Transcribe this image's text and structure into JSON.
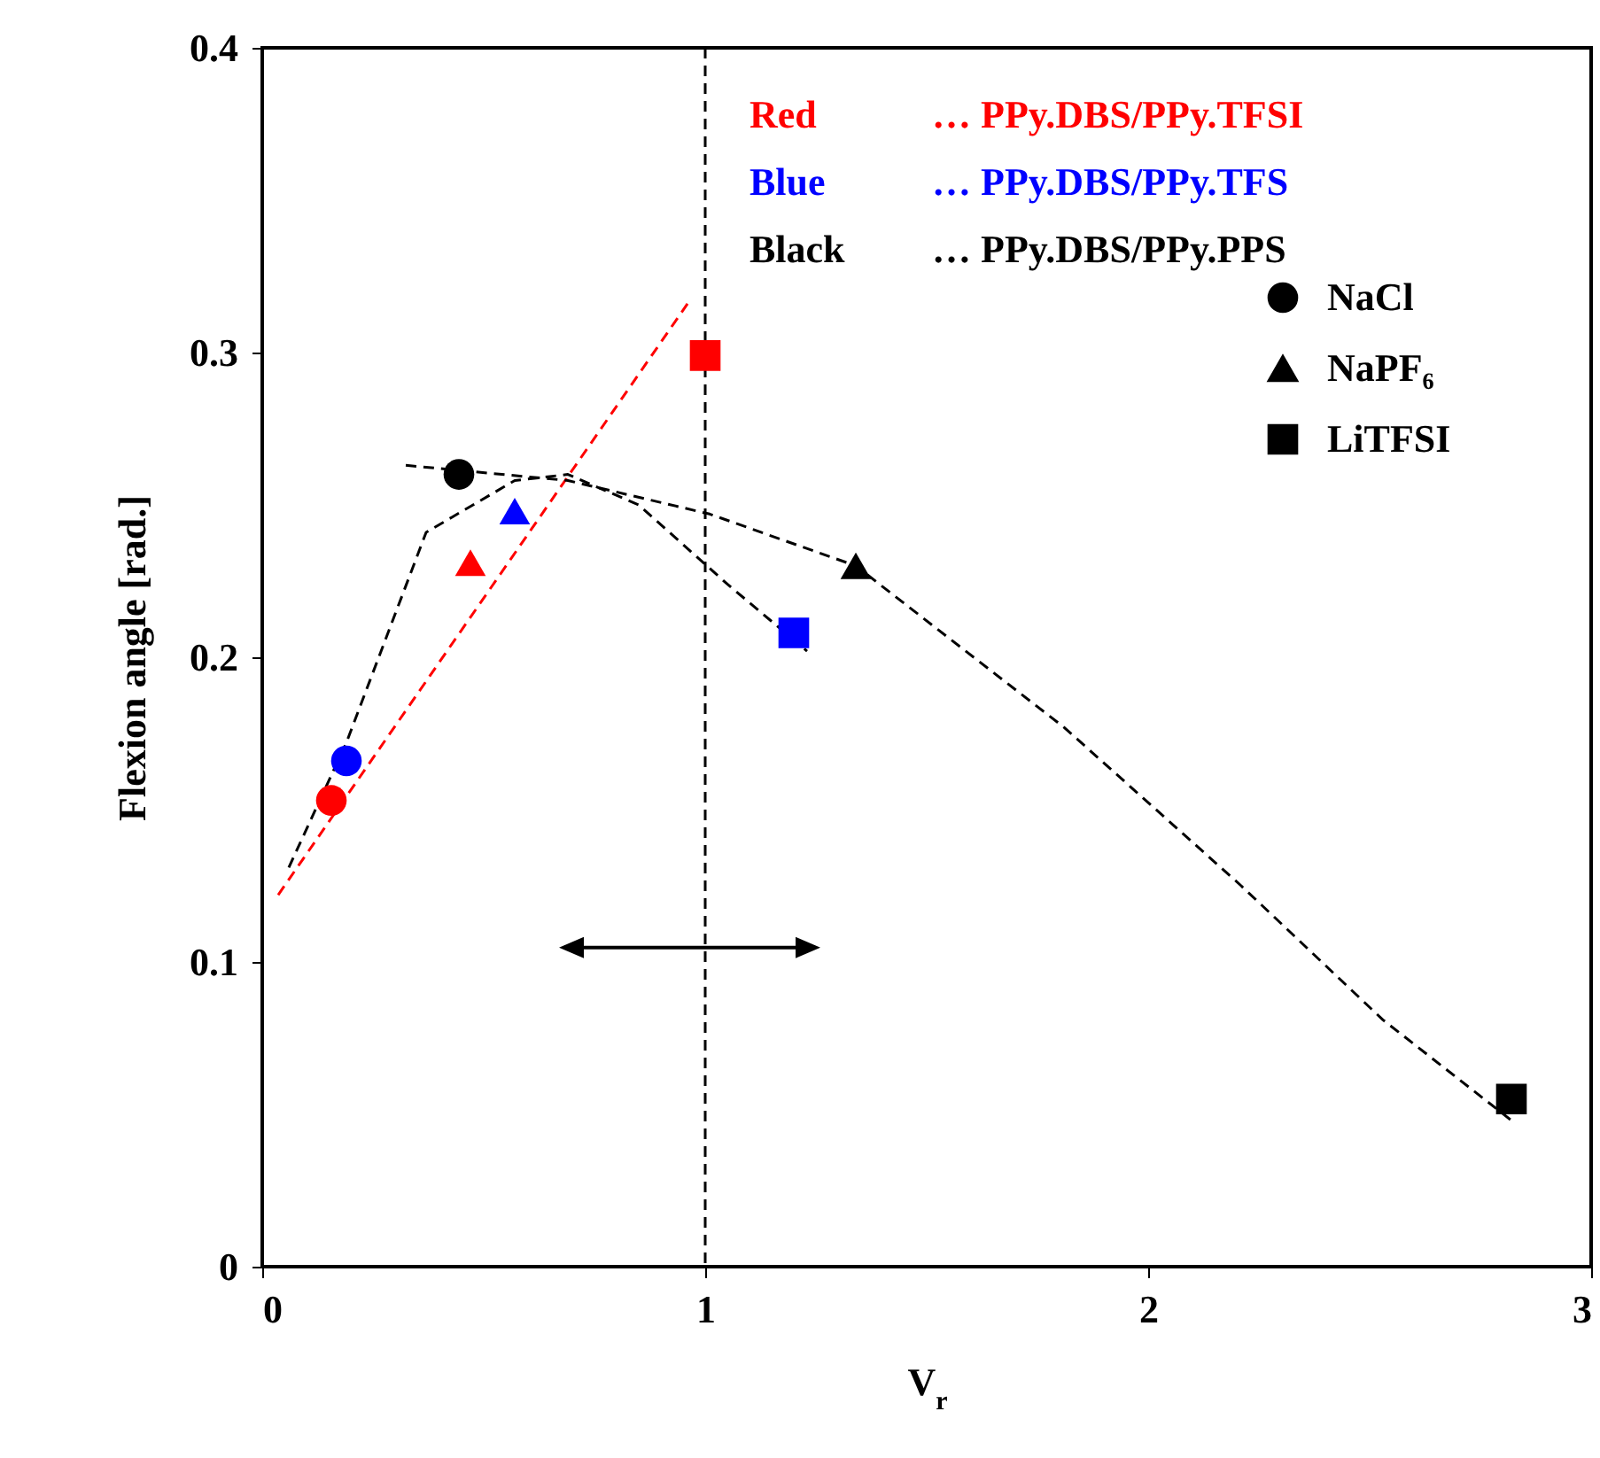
{
  "chart_data": {
    "type": "scatter",
    "xlabel": "V$_{r}$",
    "ylabel": "Flexion angle [rad.]",
    "xlim": [
      0,
      3
    ],
    "xticks": [
      0,
      1,
      2,
      3
    ],
    "ylim": [
      0,
      0.4
    ],
    "yticks": [
      0,
      0.1,
      0.2,
      0.3,
      0.4
    ],
    "grid": false,
    "legend": "top right",
    "annotations": [
      "Red … PPy.DBS/PPy.TFSI",
      "Blue … PPy.DBS/PPy.TFS",
      "Black … PPy.DBS/PPy.PPS"
    ],
    "series": [
      {
        "name": "NaCl",
        "marker": "circle",
        "x": [
          0.156,
          0.19,
          0.444
        ],
        "values": [
          0.153,
          0.166,
          0.26
        ],
        "colors": [
          "#ff0000",
          "#0000ff",
          "#000000"
        ]
      },
      {
        "name": "NaPF₆",
        "marker": "triangle",
        "x": [
          0.47,
          0.57,
          1.34
        ],
        "values": [
          0.231,
          0.248,
          0.23
        ],
        "colors": [
          "#ff0000",
          "#0000ff",
          "#000000"
        ]
      },
      {
        "name": "LiTFSI",
        "marker": "square",
        "x": [
          1.0,
          1.2,
          2.82
        ],
        "values": [
          0.299,
          0.208,
          0.055
        ],
        "colors": [
          "#ff0000",
          "#0000ff",
          "#000000"
        ]
      },
      {
        "type": "line",
        "line_style": "dashed",
        "color": "#ff0000",
        "x": [
          0.036,
          0.96
        ],
        "values": [
          0.122,
          0.316
        ]
      },
      {
        "type": "line",
        "line_style": "dashed",
        "color": "#000000",
        "x": [
          0.06,
          0.19,
          0.37,
          0.57,
          0.69,
          0.85,
          1.05,
          1.23
        ],
        "values": [
          0.131,
          0.172,
          0.241,
          0.258,
          0.26,
          0.25,
          0.224,
          0.202
        ]
      },
      {
        "type": "line",
        "line_style": "dashed",
        "color": "#000000",
        "x": [
          0.324,
          0.69,
          1.01,
          1.34,
          1.81,
          2.21,
          2.53,
          2.82
        ],
        "values": [
          0.263,
          0.258,
          0.247,
          0.23,
          0.177,
          0.125,
          0.081,
          0.048
        ]
      }
    ],
    "ref_lines": [
      {
        "axis": "x",
        "value": 1,
        "line_style": "dashed",
        "color": "#000000"
      }
    ]
  }
}
